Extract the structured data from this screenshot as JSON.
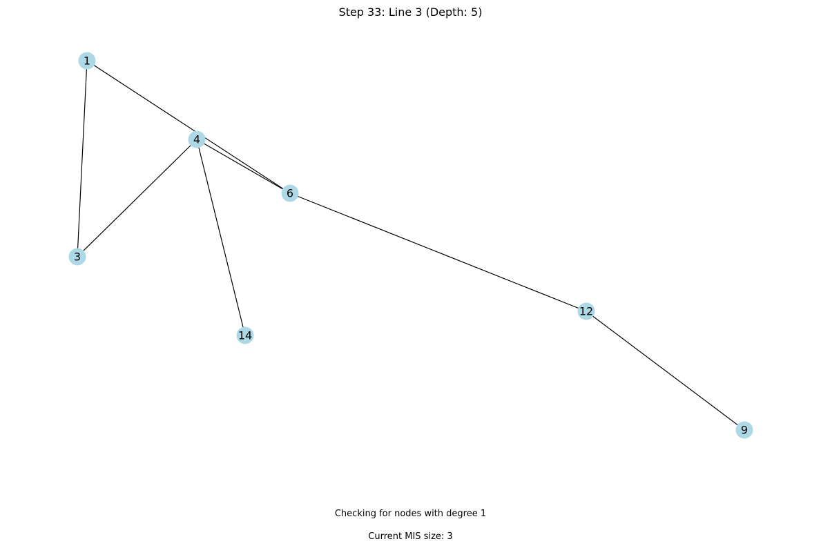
{
  "title": "Step 33: Line 3 (Depth: 5)",
  "status_text": "Checking for nodes with degree 1",
  "mis_text": "Current MIS size: 3",
  "colors": {
    "node_fill": "#add8e6",
    "edge": "#000000",
    "label": "#000000"
  },
  "graph": {
    "nodes": [
      {
        "id": "1",
        "label": "1"
      },
      {
        "id": "4",
        "label": "4"
      },
      {
        "id": "6",
        "label": "6"
      },
      {
        "id": "3",
        "label": "3"
      },
      {
        "id": "14",
        "label": "14"
      },
      {
        "id": "12",
        "label": "12"
      },
      {
        "id": "9",
        "label": "9"
      }
    ],
    "edges": [
      {
        "source": "1",
        "target": "6"
      },
      {
        "source": "1",
        "target": "3"
      },
      {
        "source": "4",
        "target": "6"
      },
      {
        "source": "4",
        "target": "3"
      },
      {
        "source": "4",
        "target": "14"
      },
      {
        "source": "6",
        "target": "12"
      },
      {
        "source": "12",
        "target": "9"
      }
    ]
  }
}
